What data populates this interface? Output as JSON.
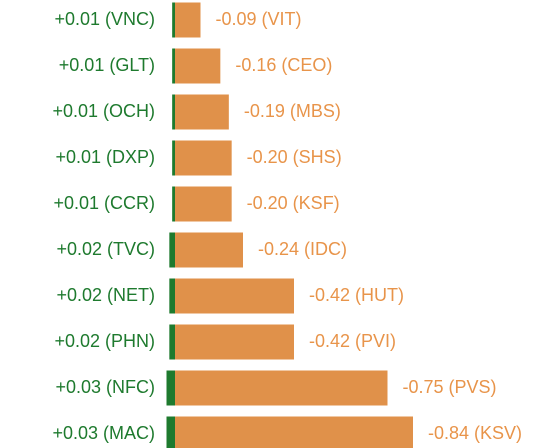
{
  "chart_data": {
    "type": "diverging_bar",
    "series": [
      {
        "name": null,
        "color": "#1e7a2e",
        "values": [
          0.01,
          0.01,
          0.01,
          0.01,
          0.01,
          0.02,
          0.02,
          0.02,
          0.03,
          0.03
        ],
        "value_labels": [
          "+0.01 (VNC)",
          "+0.01 (GLT)",
          "+0.01 (OCH)",
          "+0.01 (DXP)",
          "+0.01 (CCR)",
          "+0.02 (TVC)",
          "+0.02 (NET)",
          "+0.02 (PHN)",
          "+0.03 (NFC)",
          "+0.03 (MAC)"
        ]
      },
      {
        "name": null,
        "color": "#e0914a",
        "values": [
          -0.09,
          -0.16,
          -0.19,
          -0.2,
          -0.2,
          -0.24,
          -0.42,
          -0.42,
          -0.75,
          -0.84
        ],
        "value_labels": [
          "-0.09 (VIT)",
          "-0.16 (CEO)",
          "-0.19 (MBS)",
          "-0.20 (SHS)",
          "-0.20 (KSF)",
          "-0.24 (IDC)",
          "-0.42 (HUT)",
          "-0.42 (PVI)",
          "-0.75 (PVS)",
          "-0.84 (KSV)"
        ]
      }
    ]
  }
}
